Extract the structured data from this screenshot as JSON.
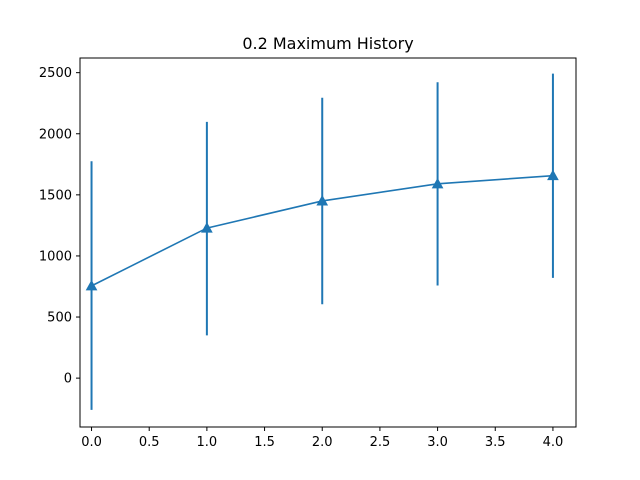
{
  "chart_data": {
    "type": "line",
    "title": "0.2 Maximum History",
    "xlabel": "",
    "ylabel": "",
    "x": [
      0,
      1,
      2,
      3,
      4
    ],
    "series": [
      {
        "values": [
          755,
          1228,
          1450,
          1590,
          1657
        ],
        "err_low": [
          -260,
          350,
          605,
          758,
          820
        ],
        "err_high": [
          1775,
          2097,
          2295,
          2422,
          2492
        ],
        "marker": "triangle-up",
        "color": "#1f77b4"
      }
    ],
    "xlim": [
      -0.1,
      4.2
    ],
    "ylim": [
      -400,
      2620
    ],
    "xticks": [
      0,
      0.5,
      1,
      1.5,
      2,
      2.5,
      3,
      3.5,
      4
    ],
    "xtick_labels": [
      "0.0",
      "0.5",
      "1.0",
      "1.5",
      "2.0",
      "2.5",
      "3.0",
      "3.5",
      "4.0"
    ],
    "yticks": [
      0,
      500,
      1000,
      1500,
      2000,
      2500
    ],
    "ytick_labels": [
      "0",
      "500",
      "1000",
      "1500",
      "2000",
      "2500"
    ],
    "grid": false
  }
}
